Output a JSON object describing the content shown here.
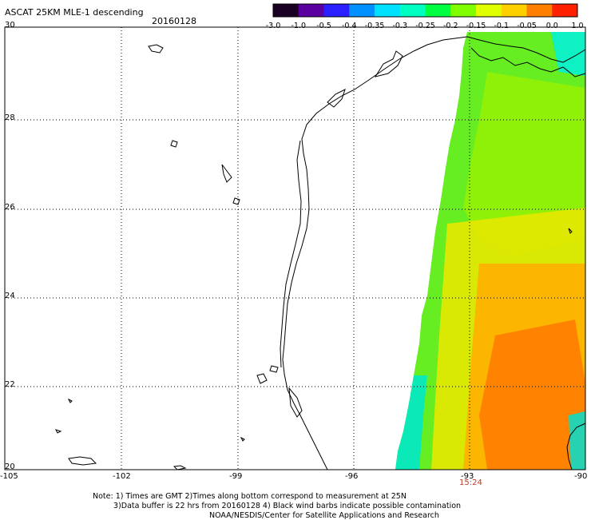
{
  "header": {
    "title": "ASCAT 25KM MLE-1 descending",
    "date": "20160128"
  },
  "colorbar": {
    "labels": [
      "-3.0",
      "-1.0",
      "-0.5",
      "-0.4",
      "-0.35",
      "-0.3",
      "-0.25",
      "-0.2",
      "-0.15",
      "-0.1",
      "-0.05",
      "0.0",
      "1.0"
    ],
    "colors": [
      "#1a0022",
      "#5a00a0",
      "#2a20ff",
      "#0090ff",
      "#00e0ff",
      "#00ffc0",
      "#00ff40",
      "#80ff00",
      "#e0ff00",
      "#ffd000",
      "#ff8000",
      "#ff2000"
    ]
  },
  "axes": {
    "lat_labels": [
      "30",
      "28",
      "26",
      "24",
      "22",
      "20"
    ],
    "lon_labels": [
      "-105",
      "-102",
      "-99",
      "-96",
      "-93",
      "-90"
    ]
  },
  "swath": {
    "time_label": "15:24"
  },
  "notes": {
    "line1": "Note: 1) Times are GMT 2)Times along bottom correspond to measurement at 25N",
    "line2": "3)Data buffer is 22 hrs from 20160128 4) Black wind barbs indicate possible contamination",
    "line3": "NOAA/NESDIS/Center for Satellite Applications and Research"
  }
}
